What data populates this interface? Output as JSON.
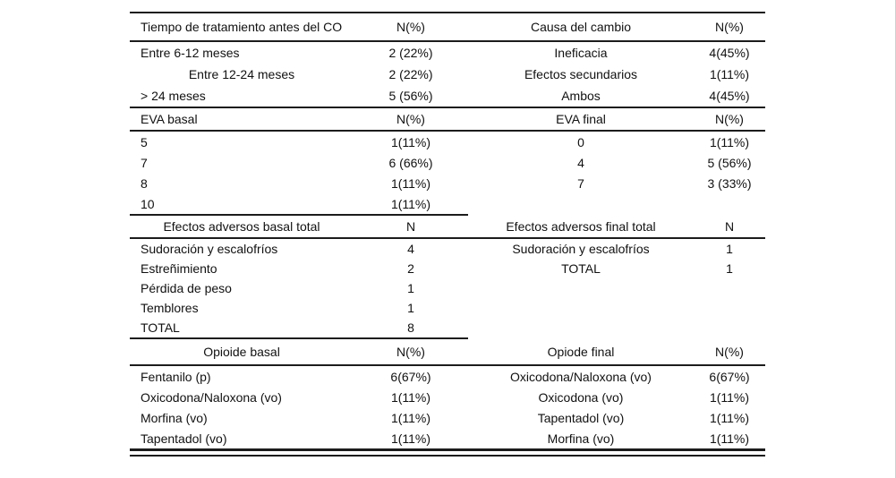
{
  "page": {
    "background_color": "#ffffff",
    "text_color": "#111111",
    "rule_color": "#1c1c1c"
  },
  "table": {
    "sections": [
      {
        "header": [
          "Tiempo de tratamiento antes del CO",
          "N(%)",
          "Causa del cambio",
          "N(%)"
        ],
        "rows": [
          [
            "Entre 6-12 meses",
            "2 (22%)",
            "Ineficacia",
            "4(45%)"
          ],
          [
            "Entre 12-24 meses",
            "2 (22%)",
            "Efectos secundarios",
            "1(11%)"
          ],
          [
            "> 24 meses",
            "5 (56%)",
            "Ambos",
            "4(45%)"
          ]
        ]
      },
      {
        "header": [
          "EVA basal",
          "N(%)",
          "EVA final",
          "N(%)"
        ],
        "rows": [
          [
            "5",
            "1(11%)",
            "0",
            "1(11%)"
          ],
          [
            "7",
            "6 (66%)",
            "4",
            "5 (56%)"
          ],
          [
            "8",
            "1(11%)",
            "7",
            "3 (33%)"
          ],
          [
            "10",
            "1(11%)",
            "",
            ""
          ]
        ]
      },
      {
        "header": [
          "Efectos adversos basal total",
          "N",
          "Efectos adversos final total",
          "N"
        ],
        "rows": [
          [
            "Sudoración y escalofríos",
            "4",
            "Sudoración y escalofríos",
            "1"
          ],
          [
            "Estreñimiento",
            "2",
            "TOTAL",
            "1"
          ],
          [
            "Pérdida de peso",
            "1",
            "",
            ""
          ],
          [
            "Temblores",
            "1",
            "",
            ""
          ],
          [
            "TOTAL",
            "8",
            "",
            ""
          ]
        ]
      },
      {
        "header": [
          "Opioide basal",
          "N(%)",
          "Opiode final",
          "N(%)"
        ],
        "rows": [
          [
            "Fentanilo (p)",
            "6(67%)",
            "Oxicodona/Naloxona (vo)",
            "6(67%)"
          ],
          [
            "Oxicodona/Naloxona (vo)",
            "1(11%)",
            "Oxicodona (vo)",
            "1(11%)"
          ],
          [
            "Morfina (vo)",
            "1(11%)",
            "Tapentadol (vo)",
            "1(11%)"
          ],
          [
            "Tapentadol (vo)",
            "1(11%)",
            "Morfina (vo)",
            "1(11%)"
          ]
        ]
      }
    ]
  }
}
